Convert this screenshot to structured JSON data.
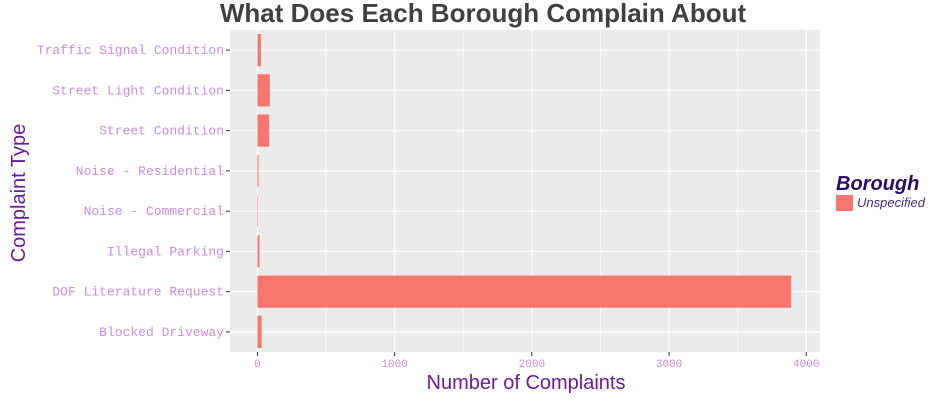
{
  "chart_data": {
    "type": "bar",
    "orientation": "horizontal",
    "title": "What Does Each Borough Complain About",
    "xlabel": "Number of Complaints",
    "ylabel": "Complaint Type",
    "categories": [
      "Blocked Driveway",
      "DOF Literature Request",
      "Illegal Parking",
      "Noise - Commercial",
      "Noise - Residential",
      "Street Condition",
      "Street Light Condition",
      "Traffic Signal Condition"
    ],
    "series": [
      {
        "name": "Unspecified",
        "color": "#F8766D",
        "values": [
          30,
          3890,
          15,
          2,
          8,
          85,
          90,
          25
        ]
      }
    ],
    "xlim": [
      -200,
      4100
    ],
    "xticks": [
      0,
      1000,
      2000,
      3000,
      4000
    ],
    "grid": true,
    "legend": {
      "title": "Borough",
      "position": "right"
    },
    "colors": {
      "panel": "#EBEBEB",
      "grid": "#FFFFFF",
      "bar": "#F8766D"
    }
  }
}
